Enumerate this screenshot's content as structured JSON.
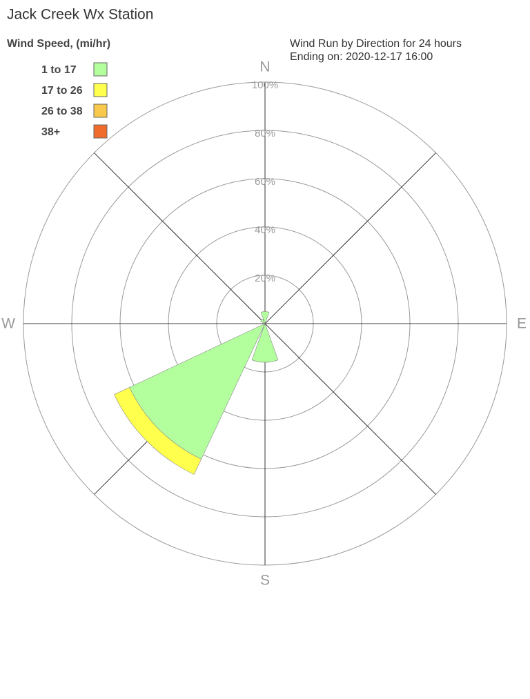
{
  "chart_data": {
    "type": "windrose",
    "title": "Jack Creek Wx Station",
    "subtitle": [
      "Wind Run by Direction for 24 hours",
      "Ending on: 2020-12-17 16:00"
    ],
    "legend_title": "Wind Speed, (mi/hr)",
    "categories": [
      "N",
      null,
      "E",
      null,
      "S",
      null,
      "W",
      null
    ],
    "series": [
      {
        "name": "1 to 17",
        "color": "#b3ff9e",
        "values": [
          5,
          0,
          0,
          0,
          16,
          62,
          0,
          2
        ]
      },
      {
        "name": "17 to 26",
        "color": "#ffff4d",
        "values": [
          0,
          0,
          0,
          0,
          0,
          7,
          0,
          0
        ]
      },
      {
        "name": "26 to 38",
        "color": "#f8c94a",
        "values": [
          0,
          0,
          0,
          0,
          0,
          0,
          0,
          0
        ]
      },
      {
        "name": "38+",
        "color": "#ef6c2c",
        "values": [
          0,
          0,
          0,
          0,
          0,
          0,
          0,
          0
        ]
      }
    ],
    "rlim": [
      0,
      100
    ],
    "rticks": [
      {
        "value": 20,
        "label": "20%"
      },
      {
        "value": 40,
        "label": "40%"
      },
      {
        "value": 60,
        "label": "60%"
      },
      {
        "value": 80,
        "label": "80%"
      },
      {
        "value": 100,
        "label": "100%"
      }
    ],
    "legend": "top-left"
  }
}
